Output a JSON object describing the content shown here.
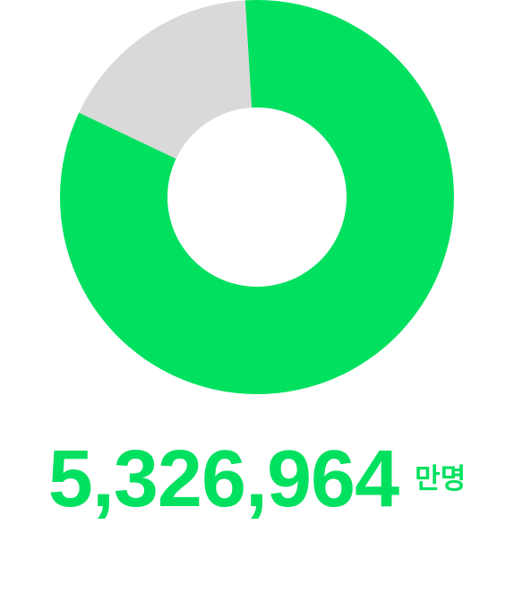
{
  "chart_data": {
    "type": "pie",
    "donut": true,
    "slices": [
      {
        "value": 83,
        "color": "#02E060"
      },
      {
        "value": 17,
        "color": "#D9D9D9"
      }
    ]
  },
  "stat": {
    "value": "5,326,964",
    "unit": "만명",
    "color": "#02E060"
  }
}
